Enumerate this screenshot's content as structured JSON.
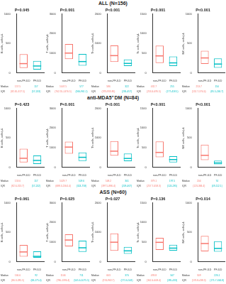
{
  "chart_data": [
    {
      "type": "box",
      "group": "ALL (N=156)",
      "title": "P=0.045",
      "ylabel": "B cells, cells/μL",
      "categories": [
        "non-PF-ILD",
        "PF-ILD"
      ],
      "colors": [
        "#F8766D",
        "#00BFC4"
      ],
      "median": [
        157.5,
        117
      ],
      "q1": [
        82.45,
        57
      ],
      "q3": [
        317.5,
        203
      ],
      "iqr_labels": [
        "(82.45-317.5)",
        "(57-203)"
      ],
      "table_labels": [
        "Median",
        "IQR"
      ],
      "ylim": [
        0,
        1000
      ],
      "yticks": [
        0,
        500,
        1000
      ],
      "grid": false
    },
    {
      "type": "box",
      "group": "ALL (N=156)",
      "title": "P<0.001",
      "ylabel": "T cells, cells/μL",
      "categories": [
        "non-PF-ILD",
        "PF-ILD"
      ],
      "colors": [
        "#F8766D",
        "#00BFC4"
      ],
      "median": [
        1007.5,
        577
      ],
      "q1": [
        702.55,
        366
      ],
      "q3": [
        1470.5,
        961.1
      ],
      "iqr_labels": [
        "(702.55-1470.5)",
        "(366-961.1)"
      ],
      "table_labels": [
        "Median",
        "IQR"
      ],
      "ylim": [
        0,
        3000
      ],
      "yticks": [
        0,
        1000,
        2000,
        3000
      ],
      "grid": false
    },
    {
      "type": "box",
      "group": "ALL (N=156)",
      "title": "P<0.001",
      "ylabel": "Th cells, cells/μL",
      "categories": [
        "non-PF-ILD",
        "PF-ILD"
      ],
      "colors": [
        "#F8766D",
        "#00BFC4"
      ],
      "median": [
        586,
        322
      ],
      "q1": [
        373,
        236
      ],
      "q3": [
        933.85,
        457
      ],
      "iqr_labels": [
        "(373-933.85)",
        "(236-457)"
      ],
      "table_labels": [
        "Median",
        "IQR"
      ],
      "ylim": [
        0,
        2000
      ],
      "yticks": [
        0,
        1000,
        2000
      ],
      "grid": false
    },
    {
      "type": "box",
      "group": "ALL (N=156)",
      "title": "P<0.001",
      "ylabel": "Ts cells, cells/μL",
      "categories": [
        "non-PF-ILD",
        "PF-ILD"
      ],
      "colors": [
        "#F8766D",
        "#00BFC4"
      ],
      "median": [
        432.7,
        255
      ],
      "q1": [
        253.4,
        177
      ],
      "q3": [
        695.5,
        418.5
      ],
      "iqr_labels": [
        "(253.4-695.5)",
        "(177-418.5)"
      ],
      "table_labels": [
        "Median",
        "IQR"
      ],
      "ylim": [
        0,
        1500
      ],
      "yticks": [
        0,
        500,
        1000,
        1500
      ],
      "grid": false
    },
    {
      "type": "box",
      "group": "ALL (N=156)",
      "title": "P<0.001",
      "ylabel": "NK cells, cells/μL",
      "categories": [
        "non-PF-ILD",
        "PF-ILD"
      ],
      "colors": [
        "#F8766D",
        "#00BFC4"
      ],
      "median": [
        253.7,
        150
      ],
      "q1": [
        152.7,
        85.5
      ],
      "q3": [
        374.4,
        246.7
      ],
      "iqr_labels": [
        "(152.7-374.4)",
        "(85.5-246.7)"
      ],
      "table_labels": [
        "Median",
        "IQR"
      ],
      "ylim": [
        0,
        1000
      ],
      "yticks": [
        0,
        500,
        1000
      ],
      "grid": false
    },
    {
      "type": "box",
      "group": "anti-MDA5⁺ DM (N=84)",
      "title": "P=0.423",
      "ylabel": "B cells, cells/μL",
      "categories": [
        "non-PF-ILD",
        "PF-ILD"
      ],
      "colors": [
        "#F8766D",
        "#00BFC4"
      ],
      "median": [
        153.6,
        117
      ],
      "q1": [
        82.6,
        57
      ],
      "q3": [
        313.7,
        202
      ],
      "iqr_labels": [
        "(82.6-313.7)",
        "(57-202)"
      ],
      "table_labels": [
        "Median",
        "IQR"
      ],
      "ylim": [
        0,
        1000
      ],
      "yticks": [
        0,
        500,
        1000
      ],
      "grid": false
    },
    {
      "type": "box",
      "group": "anti-MDA5⁺ DM (N=84)",
      "title": "P<0.001",
      "ylabel": "T cells, cells/μL",
      "categories": [
        "non-PF-ILD",
        "PF-ILD"
      ],
      "colors": [
        "#F8766D",
        "#00BFC4"
      ],
      "median": [
        1029.7,
        509.6
      ],
      "q1": [
        688.3,
        324
      ],
      "q3": [
        1304.4,
        758
      ],
      "iqr_labels": [
        "(688.3-1304.4)",
        "(324-758)"
      ],
      "table_labels": [
        "Median",
        "IQR"
      ],
      "ylim": [
        0,
        3000
      ],
      "yticks": [
        0,
        1000,
        2000,
        3000
      ],
      "grid": false
    },
    {
      "type": "box",
      "group": "anti-MDA5⁺ DM (N=84)",
      "title": "P<0.001",
      "ylabel": "Th cells, cells/μL",
      "categories": [
        "non-PF-ILD",
        "PF-ILD"
      ],
      "colors": [
        "#F8766D",
        "#00BFC4"
      ],
      "median": [
        548.2,
        301
      ],
      "q1": [
        397.5,
        209
      ],
      "q3": [
        886.4,
        467
      ],
      "iqr_labels": [
        "(397.5-886.4)",
        "(209-467)"
      ],
      "table_labels": [
        "Median",
        "IQR"
      ],
      "ylim": [
        0,
        2000
      ],
      "yticks": [
        0,
        1000,
        2000
      ],
      "grid": false
    },
    {
      "type": "box",
      "group": "anti-MDA5⁺ DM (N=84)",
      "title": "P<0.001",
      "ylabel": "Ts cells, cells/μL",
      "categories": [
        "non-PF-ILD",
        "PF-ILD"
      ],
      "colors": [
        "#F8766D",
        "#00BFC4"
      ],
      "median": [
        379.1,
        197.5
      ],
      "q1": [
        257.7,
        124
      ],
      "q3": [
        658.3,
        285
      ],
      "iqr_labels": [
        "(257.7-658.3)",
        "(124-285)"
      ],
      "table_labels": [
        "Median",
        "IQR"
      ],
      "ylim": [
        0,
        1500
      ],
      "yticks": [
        0,
        500,
        1000,
        1500
      ],
      "grid": false
    },
    {
      "type": "box",
      "group": "anti-MDA5⁺ DM (N=84)",
      "title": "P<0.001",
      "ylabel": "NK cells, cells/μL",
      "categories": [
        "non-PF-ILD",
        "PF-ILD"
      ],
      "colors": [
        "#F8766D",
        "#00BFC4"
      ],
      "median": [
        204,
        74
      ],
      "q1": [
        123,
        49
      ],
      "q3": [
        384.4,
        112.1
      ],
      "iqr_labels": [
        "(123-384.4)",
        "(49-112.1)"
      ],
      "table_labels": [
        "Median",
        "IQR"
      ],
      "ylim": [
        0,
        1000
      ],
      "yticks": [
        0,
        500,
        1000
      ],
      "grid": false
    },
    {
      "type": "box",
      "group": "ASS (N=60)",
      "title": "P=0.061",
      "ylabel": "B cells, cells/μL",
      "categories": [
        "non-PF-ILD",
        "PF-ILD"
      ],
      "colors": [
        "#F8766D",
        "#00BFC4"
      ],
      "median": [
        166.6,
        92
      ],
      "q1": [
        86.3,
        68
      ],
      "q3": [
        285.5,
        175.4
      ],
      "iqr_labels": [
        "(86.3-285.5)",
        "(68-175.4)"
      ],
      "table_labels": [
        "Median",
        "IQR"
      ],
      "ylim": [
        0,
        1000
      ],
      "yticks": [
        0,
        500,
        1000
      ],
      "grid": false
    },
    {
      "type": "box",
      "group": "ASS (N=60)",
      "title": "P=0.025",
      "ylabel": "T cells, cells/μL",
      "categories": [
        "non-PF-ILD",
        "PF-ILD"
      ],
      "colors": [
        "#F8766D",
        "#00BFC4"
      ],
      "median": [
        1106,
        711
      ],
      "q1": [
        786,
        505.6
      ],
      "q3": [
        1394.4,
        1075.5
      ],
      "iqr_labels": [
        "(786-1394.4)",
        "(505.6-1075.5)"
      ],
      "table_labels": [
        "Median",
        "IQR"
      ],
      "ylim": [
        0,
        3000
      ],
      "yticks": [
        0,
        1000,
        2000,
        3000
      ],
      "grid": false
    },
    {
      "type": "box",
      "group": "ASS (N=60)",
      "title": "P=0.027",
      "ylabel": "Th cells, cells/μL",
      "categories": [
        "non-PF-ILD",
        "PF-ILD"
      ],
      "colors": [
        "#F8766D",
        "#00BFC4"
      ],
      "median": [
        663,
        370
      ],
      "q1": [
        374,
        271.6
      ],
      "q3": [
        963.7,
        503
      ],
      "iqr_labels": [
        "(374-963.7)",
        "(271.6-503)"
      ],
      "table_labels": [
        "Median",
        "IQR"
      ],
      "ylim": [
        0,
        2000
      ],
      "yticks": [
        0,
        1000,
        2000
      ],
      "grid": false
    },
    {
      "type": "box",
      "group": "ASS (N=60)",
      "title": "P=0.136",
      "ylabel": "Ts cells, cells/μL",
      "categories": [
        "non-PF-ILD",
        "PF-ILD"
      ],
      "colors": [
        "#F8766D",
        "#00BFC4"
      ],
      "median": [
        493.8,
        347
      ],
      "q1": [
        302.4,
        285
      ],
      "q3": [
        608.4,
        433
      ],
      "iqr_labels": [
        "(302.4-608.4)",
        "(285-433)"
      ],
      "table_labels": [
        "Median",
        "IQR"
      ],
      "ylim": [
        0,
        1500
      ],
      "yticks": [
        0,
        500,
        1000,
        1500
      ],
      "grid": false
    },
    {
      "type": "box",
      "group": "ASS (N=60)",
      "title": "P=0.014",
      "ylabel": "NK cells, cells/μL",
      "categories": [
        "non-PF-ILD",
        "PF-ILD"
      ],
      "colors": [
        "#F8766D",
        "#00BFC4"
      ],
      "median": [
        309,
        226.1
      ],
      "q1": [
        176.8,
        171.7
      ],
      "q3": [
        438.3,
        346.8
      ],
      "iqr_labels": [
        "(176.8-438.3)",
        "(171.7-346.8)"
      ],
      "table_labels": [
        "Median",
        "IQR"
      ],
      "ylim": [
        0,
        1000
      ],
      "yticks": [
        0,
        500,
        1000
      ],
      "grid": false
    }
  ]
}
